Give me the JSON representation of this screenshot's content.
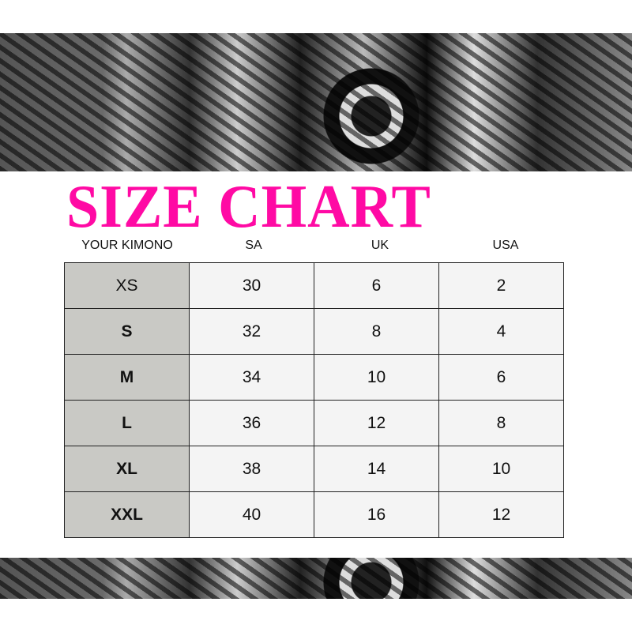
{
  "title": "SIZE CHART",
  "accent_color": "#ff0aa4",
  "headers": [
    "YOUR KIMONO",
    "SA",
    "UK",
    "USA"
  ],
  "rows": [
    {
      "size": "XS",
      "sa": "30",
      "uk": "6",
      "usa": "2"
    },
    {
      "size": "S",
      "sa": "32",
      "uk": "8",
      "usa": "4"
    },
    {
      "size": "M",
      "sa": "34",
      "uk": "10",
      "usa": "6"
    },
    {
      "size": "L",
      "sa": "36",
      "uk": "12",
      "usa": "8"
    },
    {
      "size": "XL",
      "sa": "38",
      "uk": "14",
      "usa": "10"
    },
    {
      "size": "XXL",
      "sa": "40",
      "uk": "16",
      "usa": "12"
    }
  ]
}
